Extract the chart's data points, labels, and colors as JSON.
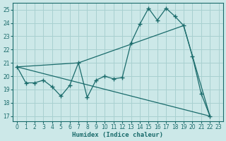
{
  "xlabel": "Humidex (Indice chaleur)",
  "bg_color": "#cce8e8",
  "line_color": "#1a6b6b",
  "grid_color": "#a8d0d0",
  "xlim": [
    -0.5,
    23.5
  ],
  "ylim": [
    16.6,
    25.5
  ],
  "yticks": [
    17,
    18,
    19,
    20,
    21,
    22,
    23,
    24,
    25
  ],
  "xticks": [
    0,
    1,
    2,
    3,
    4,
    5,
    6,
    7,
    8,
    9,
    10,
    11,
    12,
    13,
    14,
    15,
    16,
    17,
    18,
    19,
    20,
    21,
    22,
    23
  ],
  "line1_x": [
    0,
    1,
    2,
    3,
    4,
    5,
    6,
    7,
    8,
    9,
    10,
    11,
    12,
    13,
    14,
    15,
    16,
    17,
    18,
    19,
    20,
    21,
    22
  ],
  "line1_y": [
    20.7,
    19.5,
    19.5,
    19.7,
    19.2,
    18.5,
    19.3,
    21.0,
    18.4,
    19.7,
    20.0,
    19.8,
    19.9,
    22.5,
    23.9,
    25.1,
    24.2,
    25.1,
    24.5,
    23.8,
    21.5,
    18.7,
    17.0
  ],
  "line2_x": [
    0,
    22
  ],
  "line2_y": [
    20.7,
    17.0
  ],
  "line3_x": [
    0,
    7,
    19,
    22
  ],
  "line3_y": [
    20.7,
    21.0,
    23.8,
    17.0
  ]
}
